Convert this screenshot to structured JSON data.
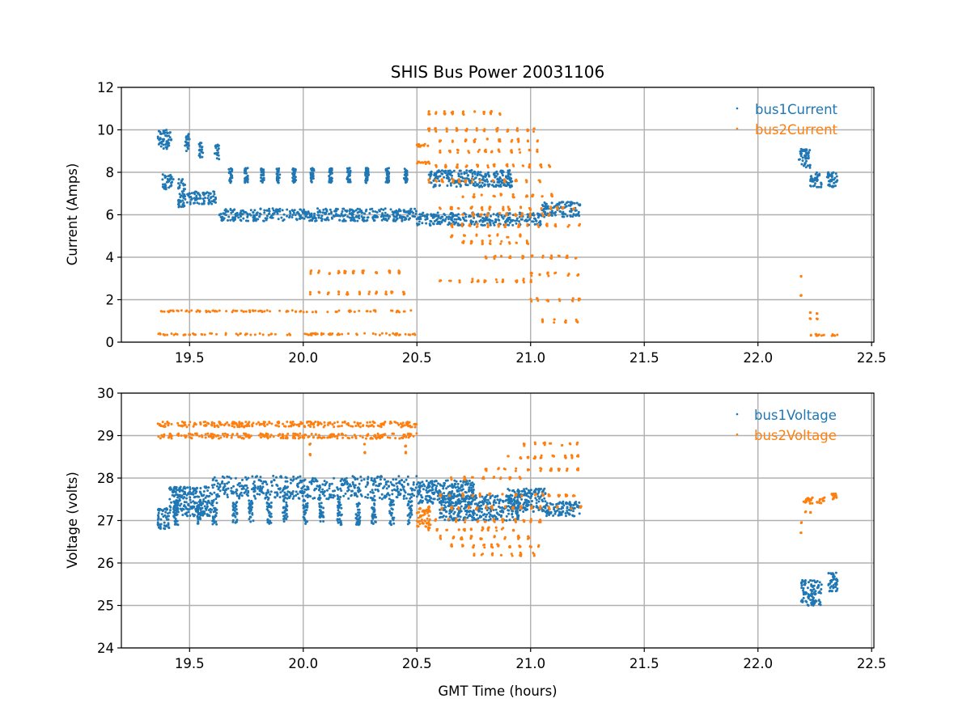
{
  "chart_data": [
    {
      "type": "scatter",
      "title": "SHIS Bus Power 20031106",
      "xlabel": "",
      "ylabel": "Current (Amps)",
      "xlim": [
        19.2,
        22.51
      ],
      "ylim": [
        0,
        12
      ],
      "xticks": [
        "19.5",
        "20.0",
        "20.5",
        "21.0",
        "21.5",
        "22.0",
        "22.5"
      ],
      "xtick_values": [
        19.5,
        20.0,
        20.5,
        21.0,
        21.5,
        22.0,
        22.5
      ],
      "yticks": [
        "0",
        "2",
        "4",
        "6",
        "8",
        "10",
        "12"
      ],
      "ytick_values": [
        0,
        2,
        4,
        6,
        8,
        10,
        12
      ],
      "grid": true,
      "legend_position": "top-right",
      "series": [
        {
          "name": "bus1Current",
          "color": "#1f77b4",
          "clusters": [
            {
              "x0": 19.36,
              "x1": 19.42,
              "ylo": 9.1,
              "yhi": 10.0
            },
            {
              "x0": 19.48,
              "x1": 19.5,
              "ylo": 9.0,
              "yhi": 9.8
            },
            {
              "x0": 19.54,
              "x1": 19.56,
              "ylo": 8.7,
              "yhi": 9.4
            },
            {
              "x0": 19.61,
              "x1": 19.63,
              "ylo": 8.6,
              "yhi": 9.3
            },
            {
              "x0": 19.38,
              "x1": 19.43,
              "ylo": 7.2,
              "yhi": 7.9
            },
            {
              "x0": 19.45,
              "x1": 19.48,
              "ylo": 6.3,
              "yhi": 7.7
            },
            {
              "x0": 19.48,
              "x1": 19.62,
              "ylo": 6.5,
              "yhi": 7.1
            },
            {
              "x0": 19.63,
              "x1": 20.5,
              "ylo": 5.7,
              "yhi": 6.3
            },
            {
              "x0": 20.5,
              "x1": 21.05,
              "ylo": 5.5,
              "yhi": 6.1
            },
            {
              "x0": 21.05,
              "x1": 21.22,
              "ylo": 5.9,
              "yhi": 6.6
            },
            {
              "x0": 20.55,
              "x1": 20.92,
              "ylo": 7.3,
              "yhi": 8.1
            },
            {
              "x0": 22.18,
              "x1": 22.23,
              "ylo": 8.2,
              "yhi": 9.1
            },
            {
              "x0": 22.23,
              "x1": 22.28,
              "ylo": 7.3,
              "yhi": 8.0
            },
            {
              "x0": 22.3,
              "x1": 22.35,
              "ylo": 7.3,
              "yhi": 8.0
            }
          ],
          "spikes_x": [
            19.68,
            19.75,
            19.82,
            19.89,
            19.96,
            20.04,
            20.12,
            20.2,
            20.28,
            20.37,
            20.45
          ],
          "spikes_y": [
            7.5,
            8.2
          ]
        },
        {
          "name": "bus2Current",
          "color": "#ff7f0e",
          "clusters": [
            {
              "x0": 19.36,
              "x1": 20.5,
              "ylo": 1.41,
              "yhi": 1.5
            },
            {
              "x0": 19.36,
              "x1": 20.5,
              "ylo": 0.33,
              "yhi": 0.42
            },
            {
              "x0": 20.5,
              "x1": 20.55,
              "ylo": 9.2,
              "yhi": 9.35
            },
            {
              "x0": 20.5,
              "x1": 20.56,
              "ylo": 8.4,
              "yhi": 8.5
            },
            {
              "x0": 22.23,
              "x1": 22.35,
              "ylo": 0.3,
              "yhi": 0.38
            }
          ],
          "levels": [
            {
              "y": 10.8,
              "x0": 20.55,
              "x1": 20.9
            },
            {
              "y": 10.0,
              "x0": 20.55,
              "x1": 21.05
            },
            {
              "y": 9.5,
              "x0": 20.6,
              "x1": 21.05
            },
            {
              "y": 9.0,
              "x0": 20.6,
              "x1": 21.05
            },
            {
              "y": 8.3,
              "x0": 20.58,
              "x1": 21.1
            },
            {
              "y": 7.6,
              "x0": 20.55,
              "x1": 21.08
            },
            {
              "y": 6.9,
              "x0": 20.7,
              "x1": 21.12
            },
            {
              "y": 6.3,
              "x0": 20.6,
              "x1": 21.22
            },
            {
              "y": 6.0,
              "x0": 20.7,
              "x1": 21.1
            },
            {
              "y": 5.5,
              "x0": 20.65,
              "x1": 21.22
            },
            {
              "y": 5.0,
              "x0": 20.65,
              "x1": 21.0
            },
            {
              "y": 4.7,
              "x0": 20.7,
              "x1": 21.0
            },
            {
              "y": 4.0,
              "x0": 20.8,
              "x1": 21.22
            },
            {
              "y": 3.2,
              "x0": 21.0,
              "x1": 21.22
            },
            {
              "y": 2.9,
              "x0": 20.6,
              "x1": 21.0
            },
            {
              "y": 2.0,
              "x0": 21.0,
              "x1": 21.22
            },
            {
              "y": 1.0,
              "x0": 21.05,
              "x1": 21.22
            },
            {
              "y": 3.3,
              "x0": 20.03,
              "x1": 20.45
            },
            {
              "y": 2.3,
              "x0": 20.03,
              "x1": 20.45
            }
          ],
          "points": [
            {
              "x": 22.19,
              "y": 3.1
            },
            {
              "x": 22.19,
              "y": 2.2
            },
            {
              "x": 22.23,
              "y": 1.4
            },
            {
              "x": 22.23,
              "y": 1.1
            },
            {
              "x": 22.26,
              "y": 1.35
            },
            {
              "x": 22.26,
              "y": 1.1
            }
          ]
        }
      ]
    },
    {
      "type": "scatter",
      "title": "",
      "xlabel": "GMT Time (hours)",
      "ylabel": "Voltage (volts)",
      "xlim": [
        19.2,
        22.51
      ],
      "ylim": [
        24,
        30
      ],
      "xticks": [
        "19.5",
        "20.0",
        "20.5",
        "21.0",
        "21.5",
        "22.0",
        "22.5"
      ],
      "xtick_values": [
        19.5,
        20.0,
        20.5,
        21.0,
        21.5,
        22.0,
        22.5
      ],
      "yticks": [
        "24",
        "25",
        "26",
        "27",
        "28",
        "29",
        "30"
      ],
      "ytick_values": [
        24,
        25,
        26,
        27,
        28,
        29,
        30
      ],
      "grid": true,
      "legend_position": "top-right",
      "series": [
        {
          "name": "bus1Voltage",
          "color": "#1f77b4",
          "clusters": [
            {
              "x0": 19.36,
              "x1": 19.41,
              "ylo": 26.8,
              "yhi": 27.3
            },
            {
              "x0": 19.41,
              "x1": 19.6,
              "ylo": 27.1,
              "yhi": 27.8
            },
            {
              "x0": 19.6,
              "x1": 20.5,
              "ylo": 27.5,
              "yhi": 28.05
            },
            {
              "x0": 20.5,
              "x1": 20.75,
              "ylo": 27.4,
              "yhi": 27.95
            },
            {
              "x0": 20.6,
              "x1": 20.95,
              "ylo": 27.0,
              "yhi": 27.6
            },
            {
              "x0": 20.9,
              "x1": 21.07,
              "ylo": 27.2,
              "yhi": 27.75
            },
            {
              "x0": 21.07,
              "x1": 21.22,
              "ylo": 27.1,
              "yhi": 27.45
            },
            {
              "x0": 22.19,
              "x1": 22.28,
              "ylo": 25.0,
              "yhi": 25.6
            },
            {
              "x0": 22.31,
              "x1": 22.35,
              "ylo": 25.3,
              "yhi": 25.8
            }
          ],
          "dips_x": [
            19.44,
            19.54,
            19.61,
            19.7,
            19.77,
            19.85,
            19.92,
            20.01,
            20.08,
            20.16,
            20.24,
            20.31,
            20.39,
            20.47
          ],
          "dips_y": [
            26.9,
            27.5
          ]
        },
        {
          "name": "bus2Voltage",
          "color": "#ff7f0e",
          "clusters": [
            {
              "x0": 19.36,
              "x1": 20.5,
              "ylo": 29.2,
              "yhi": 29.33
            },
            {
              "x0": 19.36,
              "x1": 20.5,
              "ylo": 28.93,
              "yhi": 29.05
            },
            {
              "x0": 20.5,
              "x1": 20.56,
              "ylo": 26.85,
              "yhi": 27.3
            },
            {
              "x0": 22.2,
              "x1": 22.3,
              "ylo": 27.4,
              "yhi": 27.55
            },
            {
              "x0": 22.32,
              "x1": 22.35,
              "ylo": 27.5,
              "yhi": 27.65
            }
          ],
          "levels": [
            {
              "y": 28.8,
              "x0": 20.97,
              "x1": 21.22
            },
            {
              "y": 28.5,
              "x0": 20.9,
              "x1": 21.22
            },
            {
              "y": 28.2,
              "x0": 20.8,
              "x1": 21.22
            },
            {
              "y": 28.0,
              "x0": 20.65,
              "x1": 21.0
            },
            {
              "y": 27.6,
              "x0": 20.6,
              "x1": 21.2
            },
            {
              "y": 27.3,
              "x0": 20.55,
              "x1": 21.22
            },
            {
              "y": 27.0,
              "x0": 20.58,
              "x1": 21.05
            },
            {
              "y": 26.8,
              "x0": 20.55,
              "x1": 20.95
            },
            {
              "y": 26.6,
              "x0": 20.6,
              "x1": 21.0
            },
            {
              "y": 26.4,
              "x0": 20.65,
              "x1": 21.05
            },
            {
              "y": 26.2,
              "x0": 20.75,
              "x1": 21.05
            }
          ],
          "points": [
            {
              "x": 20.03,
              "y": 28.8
            },
            {
              "x": 20.03,
              "y": 28.55
            },
            {
              "x": 20.27,
              "y": 28.8
            },
            {
              "x": 20.27,
              "y": 28.6
            },
            {
              "x": 20.45,
              "y": 28.75
            },
            {
              "x": 20.45,
              "y": 28.6
            },
            {
              "x": 22.19,
              "y": 26.95
            },
            {
              "x": 22.19,
              "y": 26.7
            },
            {
              "x": 22.21,
              "y": 27.2
            },
            {
              "x": 22.23,
              "y": 27.2
            }
          ]
        }
      ]
    }
  ]
}
